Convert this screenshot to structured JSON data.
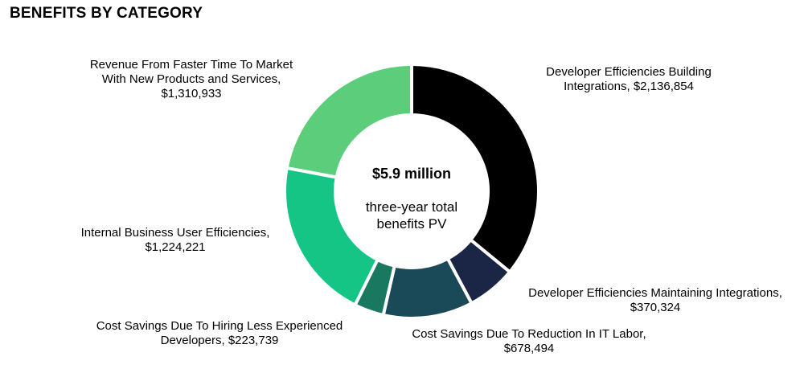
{
  "chart_data": {
    "type": "pie",
    "title": "BENEFITS BY CATEGORY",
    "donut": true,
    "center_value": "$5.9 million",
    "center_caption": [
      "three-year total",
      "benefits PV"
    ],
    "slices": [
      {
        "label_lines": [
          "Developer Efficiencies Building",
          "Integrations, $2,136,854"
        ],
        "value": 2136854,
        "color": "#000000"
      },
      {
        "label_lines": [
          "Developer Efficiencies Maintaining Integrations,",
          "$370,324"
        ],
        "value": 370324,
        "color": "#1b2646"
      },
      {
        "label_lines": [
          "Cost Savings Due To Reduction In IT Labor,",
          "$678,494"
        ],
        "value": 678494,
        "color": "#1a4a58"
      },
      {
        "label_lines": [
          "Cost Savings Due To Hiring Less Experienced",
          "Developers, $223,739"
        ],
        "value": 223739,
        "color": "#187860"
      },
      {
        "label_lines": [
          "Internal Business User Efficiencies,",
          "$1,224,221"
        ],
        "value": 1224221,
        "color": "#14c585"
      },
      {
        "label_lines": [
          "Revenue From Faster Time To Market",
          "With New Products and Services,",
          "$1,310,933"
        ],
        "value": 1310933,
        "color": "#5ccd7b"
      }
    ]
  }
}
